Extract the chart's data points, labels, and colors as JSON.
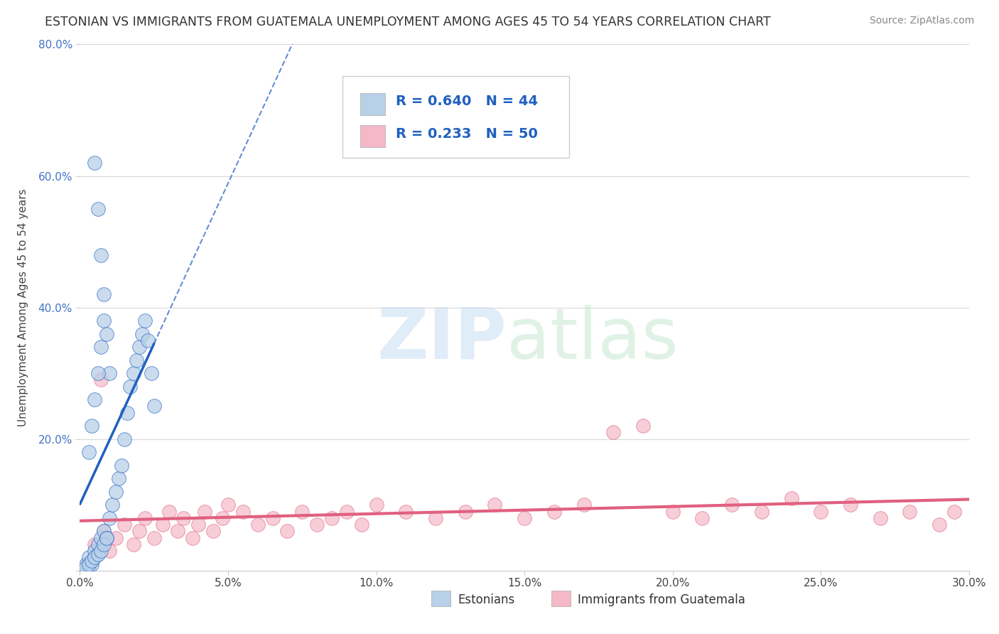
{
  "title": "ESTONIAN VS IMMIGRANTS FROM GUATEMALA UNEMPLOYMENT AMONG AGES 45 TO 54 YEARS CORRELATION CHART",
  "source": "Source: ZipAtlas.com",
  "ylabel": "Unemployment Among Ages 45 to 54 years",
  "xlim": [
    0.0,
    0.3
  ],
  "ylim": [
    0.0,
    0.8
  ],
  "xticks": [
    0.0,
    0.05,
    0.1,
    0.15,
    0.2,
    0.25,
    0.3
  ],
  "xticklabels": [
    "0.0%",
    "5.0%",
    "10.0%",
    "15.0%",
    "20.0%",
    "25.0%",
    "30.0%"
  ],
  "yticks": [
    0.0,
    0.2,
    0.4,
    0.6,
    0.8
  ],
  "yticklabels": [
    "",
    "20.0%",
    "40.0%",
    "60.0%",
    "80.0%"
  ],
  "series1_label": "Estonians",
  "series1_color": "#b8d0e8",
  "series1_line_color": "#2060c0",
  "series1_R": 0.64,
  "series1_N": 44,
  "series2_label": "Immigrants from Guatemala",
  "series2_color": "#f5b8c8",
  "series2_line_color": "#e06080",
  "series2_R": 0.233,
  "series2_N": 50,
  "background_color": "#ffffff",
  "grid_color": "#d8d8d8",
  "blue_scatter_x": [
    0.002,
    0.003,
    0.004,
    0.005,
    0.006,
    0.007,
    0.008,
    0.009,
    0.01,
    0.011,
    0.012,
    0.013,
    0.014,
    0.015,
    0.016,
    0.017,
    0.018,
    0.019,
    0.02,
    0.021,
    0.022,
    0.023,
    0.024,
    0.025,
    0.005,
    0.006,
    0.007,
    0.008,
    0.009,
    0.01,
    0.003,
    0.004,
    0.005,
    0.006,
    0.007,
    0.008,
    0.002,
    0.003,
    0.004,
    0.005,
    0.006,
    0.007,
    0.008,
    0.009
  ],
  "blue_scatter_y": [
    0.01,
    0.02,
    0.01,
    0.03,
    0.04,
    0.05,
    0.06,
    0.05,
    0.08,
    0.1,
    0.12,
    0.14,
    0.16,
    0.2,
    0.24,
    0.28,
    0.3,
    0.32,
    0.34,
    0.36,
    0.38,
    0.35,
    0.3,
    0.25,
    0.62,
    0.55,
    0.48,
    0.42,
    0.36,
    0.3,
    0.18,
    0.22,
    0.26,
    0.3,
    0.34,
    0.38,
    0.005,
    0.01,
    0.015,
    0.02,
    0.025,
    0.03,
    0.04,
    0.05
  ],
  "pink_scatter_x": [
    0.005,
    0.008,
    0.01,
    0.012,
    0.015,
    0.018,
    0.02,
    0.022,
    0.025,
    0.028,
    0.03,
    0.033,
    0.035,
    0.038,
    0.04,
    0.042,
    0.045,
    0.048,
    0.05,
    0.055,
    0.06,
    0.065,
    0.07,
    0.075,
    0.08,
    0.085,
    0.09,
    0.095,
    0.1,
    0.11,
    0.12,
    0.13,
    0.14,
    0.15,
    0.16,
    0.17,
    0.18,
    0.19,
    0.2,
    0.21,
    0.22,
    0.23,
    0.24,
    0.25,
    0.26,
    0.27,
    0.28,
    0.29,
    0.295,
    0.007
  ],
  "pink_scatter_y": [
    0.04,
    0.06,
    0.03,
    0.05,
    0.07,
    0.04,
    0.06,
    0.08,
    0.05,
    0.07,
    0.09,
    0.06,
    0.08,
    0.05,
    0.07,
    0.09,
    0.06,
    0.08,
    0.1,
    0.09,
    0.07,
    0.08,
    0.06,
    0.09,
    0.07,
    0.08,
    0.09,
    0.07,
    0.1,
    0.09,
    0.08,
    0.09,
    0.1,
    0.08,
    0.09,
    0.1,
    0.21,
    0.22,
    0.09,
    0.08,
    0.1,
    0.09,
    0.11,
    0.09,
    0.1,
    0.08,
    0.09,
    0.07,
    0.09,
    0.29
  ]
}
